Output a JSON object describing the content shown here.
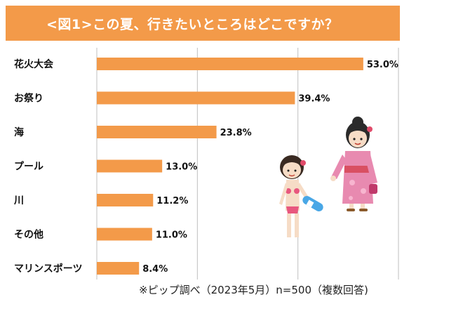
{
  "title": "<図1>この夏、行きたいところはどこですか？",
  "note": "※ピップ調べ（2023年5月）n=500（複数回答)",
  "colors": {
    "banner": "#f39a49",
    "bar": "#f39a49",
    "grid": "#bfbfbf"
  },
  "illustration": {
    "description_icon": "summer-kids-illustration-icon"
  },
  "chart_data": {
    "type": "bar",
    "orientation": "horizontal",
    "title": "<図1>この夏、行きたいところはどこですか？",
    "categories": [
      "花火大会",
      "お祭り",
      "海",
      "プール",
      "川",
      "その他",
      "マリンスポーツ"
    ],
    "values": [
      53.0,
      39.4,
      23.8,
      13.0,
      11.2,
      11.0,
      8.4
    ],
    "value_labels": [
      "53.0%",
      "39.4%",
      "23.8%",
      "13.0%",
      "11.2%",
      "11.0%",
      "8.4%"
    ],
    "unit": "%",
    "xlim": [
      0,
      60
    ],
    "grid": true
  }
}
